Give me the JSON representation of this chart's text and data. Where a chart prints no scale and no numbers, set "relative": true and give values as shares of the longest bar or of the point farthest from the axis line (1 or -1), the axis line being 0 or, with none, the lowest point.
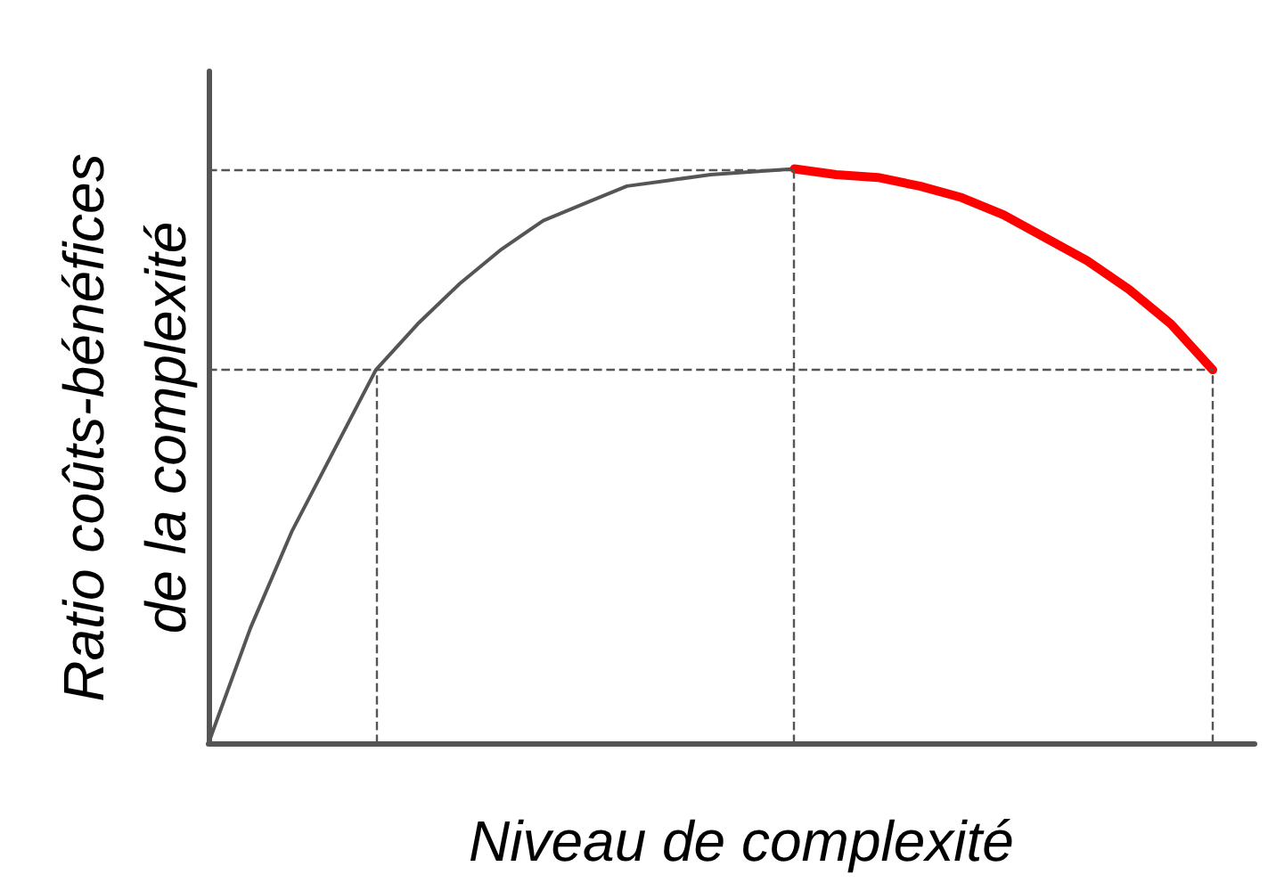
{
  "chart_data": {
    "type": "line",
    "relative": true,
    "xlabel": "Niveau de complexité",
    "ylabel": "Ratio coûts-bénéfices\nde la complexité",
    "categories": [
      null,
      null,
      null,
      null,
      null,
      null,
      null,
      null,
      null,
      null,
      null,
      null,
      null,
      null,
      null,
      null,
      null,
      null,
      null,
      null,
      null,
      null,
      null,
      null,
      null,
      null
    ],
    "series": [
      {
        "color": "#555555",
        "values": [
          0,
          0.2,
          0.37,
          0.51,
          0.65,
          0.73,
          0.8,
          0.86,
          0.91,
          0.94,
          0.97,
          0.98,
          0.99,
          0.995,
          1,
          null,
          null,
          null,
          null,
          null,
          null,
          null,
          null,
          null,
          null,
          null
        ]
      },
      {
        "color": "#ff0000",
        "values": [
          null,
          null,
          null,
          null,
          null,
          null,
          null,
          null,
          null,
          null,
          null,
          null,
          null,
          null,
          1,
          0.99,
          0.985,
          0.97,
          0.95,
          0.92,
          0.88,
          0.84,
          0.79,
          0.73,
          0.65,
          null
        ]
      }
    ],
    "ref_lines": [
      {
        "axis": "y",
        "value": 1,
        "line_style": "dashed",
        "color": "#555555"
      },
      {
        "axis": "y",
        "value": 0.65,
        "line_style": "dashed",
        "color": "#555555"
      }
    ],
    "grid": false,
    "marker": "none",
    "line_style": "solid"
  }
}
